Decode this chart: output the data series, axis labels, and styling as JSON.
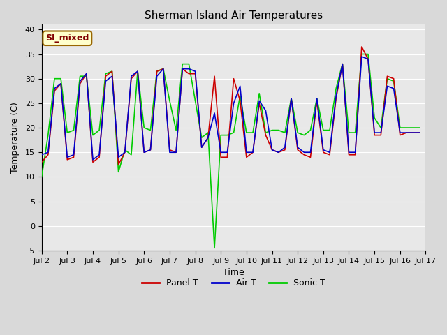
{
  "title": "Sherman Island Air Temperatures",
  "xlabel": "Time",
  "ylabel": "Temperature (C)",
  "ylim": [
    -5,
    41
  ],
  "yticks": [
    -5,
    0,
    5,
    10,
    15,
    20,
    25,
    30,
    35,
    40
  ],
  "annotation_text": "SI_mixed",
  "annotation_box_facecolor": "#ffffcc",
  "annotation_text_color": "#800000",
  "annotation_edge_color": "#996600",
  "fig_facecolor": "#d9d9d9",
  "ax_facecolor": "#e8e8e8",
  "colors": {
    "panel": "#cc0000",
    "air": "#0000cc",
    "sonic": "#00cc00"
  },
  "x_tick_labels": [
    "Jul 2",
    "Jul 3",
    "Jul 4",
    "Jul 5",
    "Jul 6",
    "Jul 7",
    "Jul 8",
    "Jul 9",
    "Jul 10",
    "Jul 11",
    "Jul 12",
    "Jul 13",
    "Jul 14",
    "Jul 15",
    "Jul 16",
    "Jul 17"
  ],
  "panel_T": [
    13.0,
    14.5,
    27.5,
    29.0,
    13.5,
    14.0,
    29.0,
    31.0,
    13.0,
    14.0,
    30.5,
    31.5,
    12.5,
    15.0,
    30.0,
    31.5,
    15.0,
    15.5,
    31.5,
    32.0,
    15.5,
    15.0,
    32.0,
    31.0,
    31.0,
    16.0,
    18.0,
    30.5,
    14.0,
    14.0,
    30.0,
    25.5,
    14.0,
    15.0,
    25.0,
    18.5,
    15.5,
    15.0,
    15.5,
    26.0,
    15.5,
    14.5,
    14.0,
    25.5,
    15.0,
    14.5,
    26.0,
    33.0,
    14.5,
    14.5,
    36.5,
    34.0,
    18.5,
    18.5,
    30.5,
    30.0,
    18.5,
    19.0,
    19.0,
    19.0
  ],
  "air_T": [
    14.5,
    15.0,
    28.0,
    29.0,
    14.0,
    14.5,
    29.5,
    31.0,
    13.5,
    14.5,
    29.5,
    30.5,
    14.0,
    15.0,
    30.5,
    31.5,
    15.0,
    15.5,
    30.5,
    32.0,
    15.0,
    15.0,
    32.0,
    32.0,
    31.5,
    16.0,
    18.0,
    23.0,
    15.0,
    15.0,
    25.0,
    28.5,
    15.0,
    15.0,
    25.5,
    23.5,
    15.5,
    15.0,
    16.0,
    26.0,
    16.0,
    15.0,
    15.0,
    26.0,
    15.5,
    15.0,
    26.5,
    33.0,
    15.0,
    15.0,
    34.5,
    34.0,
    19.0,
    19.0,
    28.5,
    28.0,
    19.0,
    19.0,
    19.0,
    19.0
  ],
  "sonic_T": [
    10.0,
    18.5,
    30.0,
    30.0,
    19.0,
    19.5,
    30.5,
    30.5,
    18.5,
    19.5,
    31.0,
    31.5,
    11.0,
    15.5,
    14.5,
    31.5,
    20.0,
    19.5,
    31.5,
    32.0,
    25.5,
    19.5,
    33.0,
    33.0,
    25.5,
    18.0,
    19.0,
    -4.5,
    18.5,
    18.5,
    19.0,
    26.5,
    19.0,
    19.0,
    27.0,
    19.0,
    19.5,
    19.5,
    19.0,
    26.0,
    19.0,
    18.5,
    19.5,
    26.0,
    19.5,
    19.5,
    28.0,
    33.0,
    19.0,
    19.0,
    35.0,
    35.0,
    22.0,
    20.0,
    30.0,
    29.5,
    20.0,
    20.0,
    20.0,
    20.0
  ],
  "linewidth": 1.2,
  "title_fontsize": 11,
  "axis_label_fontsize": 9,
  "tick_fontsize": 8,
  "legend_fontsize": 9
}
